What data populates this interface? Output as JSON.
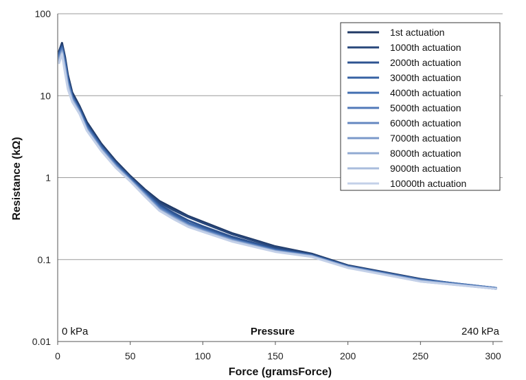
{
  "chart_data": {
    "type": "line",
    "title": "",
    "xlabel": "Force (gramsForce)",
    "ylabel": "Resistance (kΩ)",
    "xlim": [
      0,
      300
    ],
    "ylim": [
      0.01,
      100
    ],
    "yscale": "log",
    "x_ticks": [
      "0",
      "50",
      "100",
      "150",
      "200",
      "250",
      "300"
    ],
    "y_ticks": [
      "0.01",
      "0.1",
      "1",
      "10",
      "100"
    ],
    "grid": "horizontal",
    "legend_position": "top-right",
    "annotations": {
      "left": "0 kPa",
      "center": "Pressure",
      "right": "240 kPa"
    },
    "series": [
      {
        "name": "1st actuation",
        "color": "#1f3864",
        "x": [
          1,
          3,
          5,
          7,
          10,
          15,
          20,
          30,
          40,
          50,
          60,
          70,
          80,
          90,
          100,
          120,
          150,
          175,
          200,
          250,
          302
        ],
        "y": [
          35,
          44,
          30,
          18,
          11,
          7.5,
          4.8,
          2.6,
          1.6,
          1.05,
          0.72,
          0.52,
          0.42,
          0.34,
          0.29,
          0.21,
          0.145,
          0.118,
          0.085,
          0.058,
          0.044
        ]
      },
      {
        "name": "1000th actuation",
        "color": "#27467a",
        "x": [
          1,
          3,
          5,
          7,
          10,
          15,
          20,
          30,
          40,
          50,
          60,
          70,
          80,
          90,
          100,
          120,
          150,
          175,
          200,
          250,
          302
        ],
        "y": [
          34,
          42,
          28,
          17,
          10.5,
          7.2,
          4.6,
          2.5,
          1.55,
          1.02,
          0.7,
          0.5,
          0.4,
          0.33,
          0.28,
          0.205,
          0.142,
          0.116,
          0.084,
          0.057,
          0.044
        ]
      },
      {
        "name": "2000th actuation",
        "color": "#2e5390",
        "x": [
          1,
          3,
          5,
          7,
          10,
          15,
          20,
          30,
          40,
          50,
          60,
          70,
          80,
          90,
          100,
          120,
          150,
          175,
          200,
          250,
          302
        ],
        "y": [
          33,
          40,
          27,
          16,
          10,
          7.0,
          4.4,
          2.45,
          1.5,
          1.0,
          0.68,
          0.47,
          0.37,
          0.3,
          0.255,
          0.19,
          0.135,
          0.114,
          0.083,
          0.057,
          0.045
        ]
      },
      {
        "name": "3000th actuation",
        "color": "#3661a3",
        "x": [
          1,
          3,
          5,
          7,
          10,
          15,
          20,
          30,
          40,
          50,
          60,
          70,
          80,
          90,
          100,
          120,
          150,
          175,
          200,
          250,
          302
        ],
        "y": [
          32,
          39,
          26,
          15.5,
          9.8,
          6.8,
          4.3,
          2.4,
          1.48,
          0.98,
          0.66,
          0.45,
          0.35,
          0.28,
          0.24,
          0.18,
          0.132,
          0.113,
          0.083,
          0.057,
          0.045
        ]
      },
      {
        "name": "4000th actuation",
        "color": "#416eb0",
        "x": [
          1,
          3,
          5,
          7,
          10,
          15,
          20,
          30,
          40,
          50,
          60,
          70,
          80,
          90,
          100,
          120,
          150,
          175,
          200,
          250,
          302
        ],
        "y": [
          31,
          38,
          25,
          15,
          9.6,
          6.6,
          4.2,
          2.35,
          1.45,
          0.96,
          0.65,
          0.44,
          0.34,
          0.275,
          0.235,
          0.178,
          0.13,
          0.112,
          0.082,
          0.056,
          0.045
        ]
      },
      {
        "name": "5000th actuation",
        "color": "#5079b8",
        "x": [
          1,
          3,
          5,
          7,
          10,
          15,
          20,
          30,
          40,
          50,
          60,
          70,
          80,
          90,
          100,
          120,
          150,
          175,
          200,
          250,
          302
        ],
        "y": [
          30,
          37,
          24,
          14.5,
          9.4,
          6.5,
          4.1,
          2.3,
          1.42,
          0.95,
          0.64,
          0.43,
          0.335,
          0.27,
          0.232,
          0.176,
          0.129,
          0.112,
          0.082,
          0.056,
          0.045
        ]
      },
      {
        "name": "6000th actuation",
        "color": "#6487c0",
        "x": [
          1,
          3,
          5,
          7,
          10,
          15,
          20,
          30,
          40,
          50,
          60,
          70,
          80,
          90,
          100,
          120,
          150,
          175,
          200,
          250,
          302
        ],
        "y": [
          29,
          36,
          23,
          14,
          9.2,
          6.4,
          4.0,
          2.25,
          1.4,
          0.94,
          0.63,
          0.42,
          0.33,
          0.265,
          0.228,
          0.174,
          0.128,
          0.111,
          0.081,
          0.055,
          0.044
        ]
      },
      {
        "name": "7000th actuation",
        "color": "#7a98c9",
        "x": [
          1,
          3,
          5,
          7,
          10,
          15,
          20,
          30,
          40,
          50,
          60,
          70,
          80,
          90,
          100,
          120,
          150,
          175,
          200,
          250,
          302
        ],
        "y": [
          28,
          35,
          22,
          13.5,
          9.0,
          6.3,
          3.9,
          2.2,
          1.38,
          0.93,
          0.62,
          0.41,
          0.325,
          0.26,
          0.225,
          0.172,
          0.127,
          0.11,
          0.081,
          0.055,
          0.044
        ]
      },
      {
        "name": "8000th actuation",
        "color": "#91aad2",
        "x": [
          1,
          3,
          5,
          7,
          10,
          15,
          20,
          30,
          40,
          50,
          60,
          70,
          80,
          90,
          100,
          120,
          150,
          175,
          200,
          250,
          302
        ],
        "y": [
          27,
          34,
          21,
          13,
          8.8,
          6.2,
          3.85,
          2.18,
          1.36,
          0.92,
          0.61,
          0.405,
          0.32,
          0.258,
          0.222,
          0.17,
          0.126,
          0.11,
          0.08,
          0.055,
          0.044
        ]
      },
      {
        "name": "9000th actuation",
        "color": "#a9bcdc",
        "x": [
          1,
          3,
          5,
          7,
          10,
          15,
          20,
          30,
          40,
          50,
          60,
          70,
          80,
          90,
          100,
          120,
          150,
          175,
          200,
          250,
          302
        ],
        "y": [
          26,
          33,
          20,
          12.5,
          8.6,
          6.1,
          3.8,
          2.15,
          1.34,
          0.91,
          0.6,
          0.4,
          0.315,
          0.255,
          0.22,
          0.168,
          0.125,
          0.109,
          0.08,
          0.054,
          0.044
        ]
      },
      {
        "name": "10000th actuation",
        "color": "#c3d0e8",
        "x": [
          1,
          3,
          5,
          7,
          10,
          15,
          20,
          30,
          40,
          50,
          60,
          70,
          80,
          90,
          100,
          120,
          150,
          175,
          200,
          250,
          302
        ],
        "y": [
          25,
          32,
          19,
          12,
          8.4,
          6.0,
          3.75,
          2.12,
          1.32,
          0.9,
          0.59,
          0.395,
          0.31,
          0.25,
          0.218,
          0.166,
          0.124,
          0.108,
          0.079,
          0.054,
          0.044
        ]
      }
    ]
  }
}
